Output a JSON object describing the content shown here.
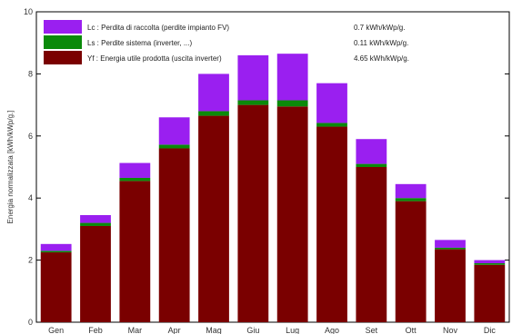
{
  "chart_data": {
    "type": "bar",
    "stacked": true,
    "categories": [
      "Gen",
      "Feb",
      "Mar",
      "Apr",
      "Mag",
      "Giu",
      "Lug",
      "Ago",
      "Set",
      "Ott",
      "Nov",
      "Dic"
    ],
    "series": [
      {
        "name": "Yf : Energia utile prodotta (uscita inverter)",
        "color": "#7a0000",
        "values": [
          2.25,
          3.1,
          4.55,
          5.6,
          6.65,
          7.0,
          6.95,
          6.3,
          5.0,
          3.9,
          2.35,
          1.85
        ]
      },
      {
        "name": "Ls : Perdite sistema (inverter, ...)",
        "color": "#0a8a0a",
        "values": [
          0.05,
          0.1,
          0.1,
          0.12,
          0.15,
          0.15,
          0.2,
          0.12,
          0.1,
          0.1,
          0.05,
          0.05
        ]
      },
      {
        "name": "Lc : Perdita di raccolta (perdite impianto FV)",
        "color": "#9a1ff0",
        "values": [
          0.22,
          0.25,
          0.48,
          0.88,
          1.2,
          1.45,
          1.5,
          1.28,
          0.8,
          0.45,
          0.25,
          0.1
        ]
      }
    ],
    "legend_values": [
      "0.7 kWh/kWp/g.",
      "0.11 kWh/kWp/g.",
      "4.65 kWh/kWp/g."
    ],
    "ylabel": "Energia normalizzata [kWh/kWp/g.]",
    "ylim": [
      0,
      10
    ],
    "yticks": [
      "0",
      "2",
      "4",
      "6",
      "8",
      "10"
    ],
    "grid": false,
    "legend_position": "top-left"
  }
}
